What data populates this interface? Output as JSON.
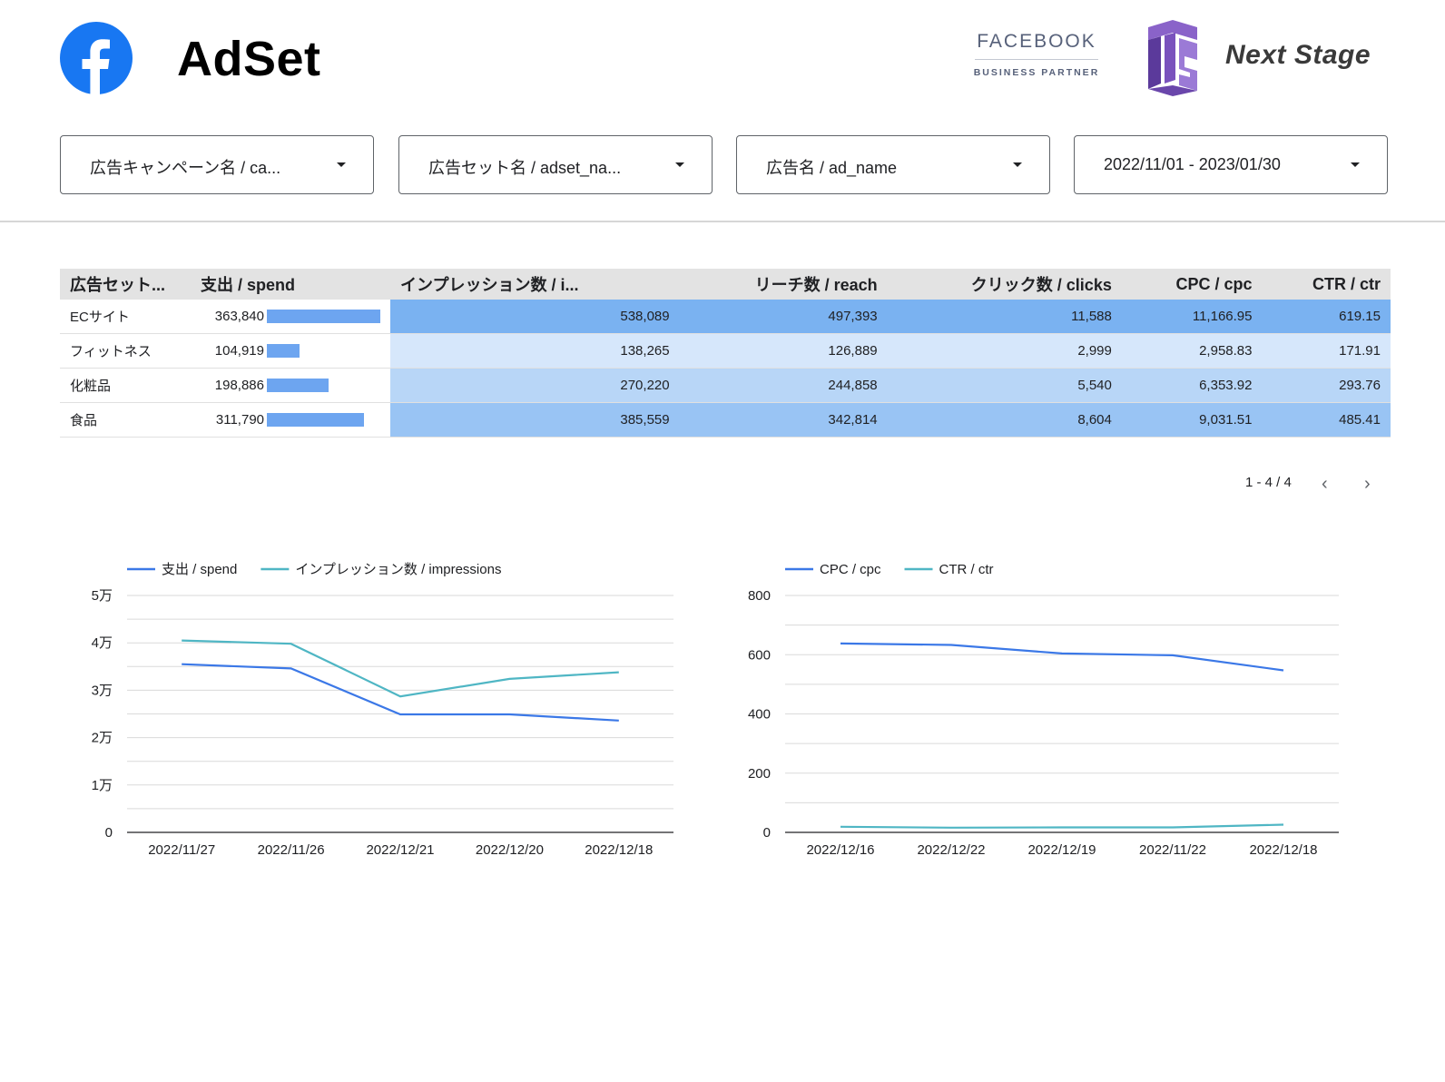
{
  "header": {
    "title": "AdSet",
    "partner_line1": "FACEBOOK",
    "partner_line2": "BUSINESS PARTNER",
    "brand_name": "Next Stage"
  },
  "filters": [
    {
      "label": "広告キャンペーン名 / ca..."
    },
    {
      "label": "広告セット名 / adset_na..."
    },
    {
      "label": "広告名 / ad_name"
    },
    {
      "label": "2022/11/01 - 2023/01/30"
    }
  ],
  "table": {
    "headers": [
      "広告セット...",
      "支出 / spend",
      "インプレッション数 / i...",
      "リーチ数 / reach",
      "クリック数 / clicks",
      "CPC / cpc",
      "CTR / ctr"
    ],
    "rows": [
      {
        "name": "ECサイト",
        "spend": "363,840",
        "spend_value": 363840,
        "impressions": "538,089",
        "reach": "497,393",
        "clicks": "11,588",
        "cpc": "11,166.95",
        "ctr": "619.15"
      },
      {
        "name": "フィットネス",
        "spend": "104,919",
        "spend_value": 104919,
        "impressions": "138,265",
        "reach": "126,889",
        "clicks": "2,999",
        "cpc": "2,958.83",
        "ctr": "171.91"
      },
      {
        "name": "化粧品",
        "spend": "198,886",
        "spend_value": 198886,
        "impressions": "270,220",
        "reach": "244,858",
        "clicks": "5,540",
        "cpc": "6,353.92",
        "ctr": "293.76"
      },
      {
        "name": "食品",
        "spend": "311,790",
        "spend_value": 311790,
        "impressions": "385,559",
        "reach": "342,814",
        "clicks": "8,604",
        "cpc": "9,031.51",
        "ctr": "485.41"
      }
    ]
  },
  "pagination": {
    "label": "1 - 4 / 4"
  },
  "colors": {
    "accent": "#1a73e8",
    "facebook_blue": "#1877f2",
    "spend_bar": "#6da5f0",
    "heat_shades": [
      "#7ab2f1",
      "#d6e7fb",
      "#b8d6f7",
      "#99c4f4"
    ],
    "series_blue": "#3b78e7",
    "series_teal": "#4fb6c4"
  },
  "chart_data": [
    {
      "type": "line",
      "x": [
        "2022/11/27",
        "2022/11/26",
        "2022/12/21",
        "2022/12/20",
        "2022/12/18"
      ],
      "series": [
        {
          "name": "支出 / spend",
          "values": [
            35500,
            34600,
            24900,
            24900,
            23600
          ]
        },
        {
          "name": "インプレッション数 / impressions",
          "values": [
            40500,
            39800,
            28700,
            32400,
            33800
          ]
        }
      ],
      "yticks": [
        "0",
        "1万",
        "2万",
        "3万",
        "4万",
        "5万"
      ],
      "ylim": [
        0,
        50000
      ],
      "grid": true,
      "legend": "top-left"
    },
    {
      "type": "line",
      "x": [
        "2022/12/16",
        "2022/12/22",
        "2022/12/19",
        "2022/11/22",
        "2022/12/18"
      ],
      "series": [
        {
          "name": "CPC / cpc",
          "values": [
            638,
            633,
            604,
            598,
            547
          ]
        },
        {
          "name": "CTR / ctr",
          "values": [
            19,
            16,
            17,
            17,
            26
          ]
        }
      ],
      "yticks": [
        "0",
        "200",
        "400",
        "600",
        "800"
      ],
      "ylim": [
        0,
        800
      ],
      "grid": true,
      "legend": "top-left"
    }
  ]
}
